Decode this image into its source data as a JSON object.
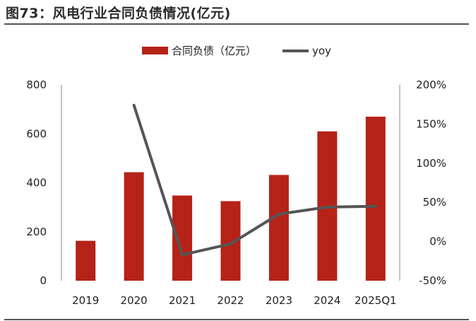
{
  "figure": {
    "title": "图73：风电行业合同负债情况(亿元)"
  },
  "colors": {
    "bar": "#B52218",
    "line": "#555555",
    "rule": "#555555"
  },
  "chart_data": {
    "type": "bar",
    "categories": [
      "2019",
      "2020",
      "2021",
      "2022",
      "2023",
      "2024",
      "2025Q1"
    ],
    "series": [
      {
        "name": "合同负债（亿元）",
        "type": "bar",
        "axis": "left",
        "values": [
          163,
          443,
          348,
          325,
          432,
          610,
          670
        ]
      },
      {
        "name": "yoy",
        "type": "line",
        "axis": "right",
        "values": [
          null,
          174,
          -17,
          -3,
          35,
          44,
          45
        ]
      }
    ],
    "ylim_left": [
      0,
      800
    ],
    "yticks_left": [
      "0",
      "200",
      "400",
      "600",
      "800"
    ],
    "ylim_right": [
      -50,
      200
    ],
    "yticks_right": [
      "-50%",
      "0%",
      "50%",
      "100%",
      "150%",
      "200%"
    ],
    "legend_position": "top-center",
    "grid": false
  }
}
